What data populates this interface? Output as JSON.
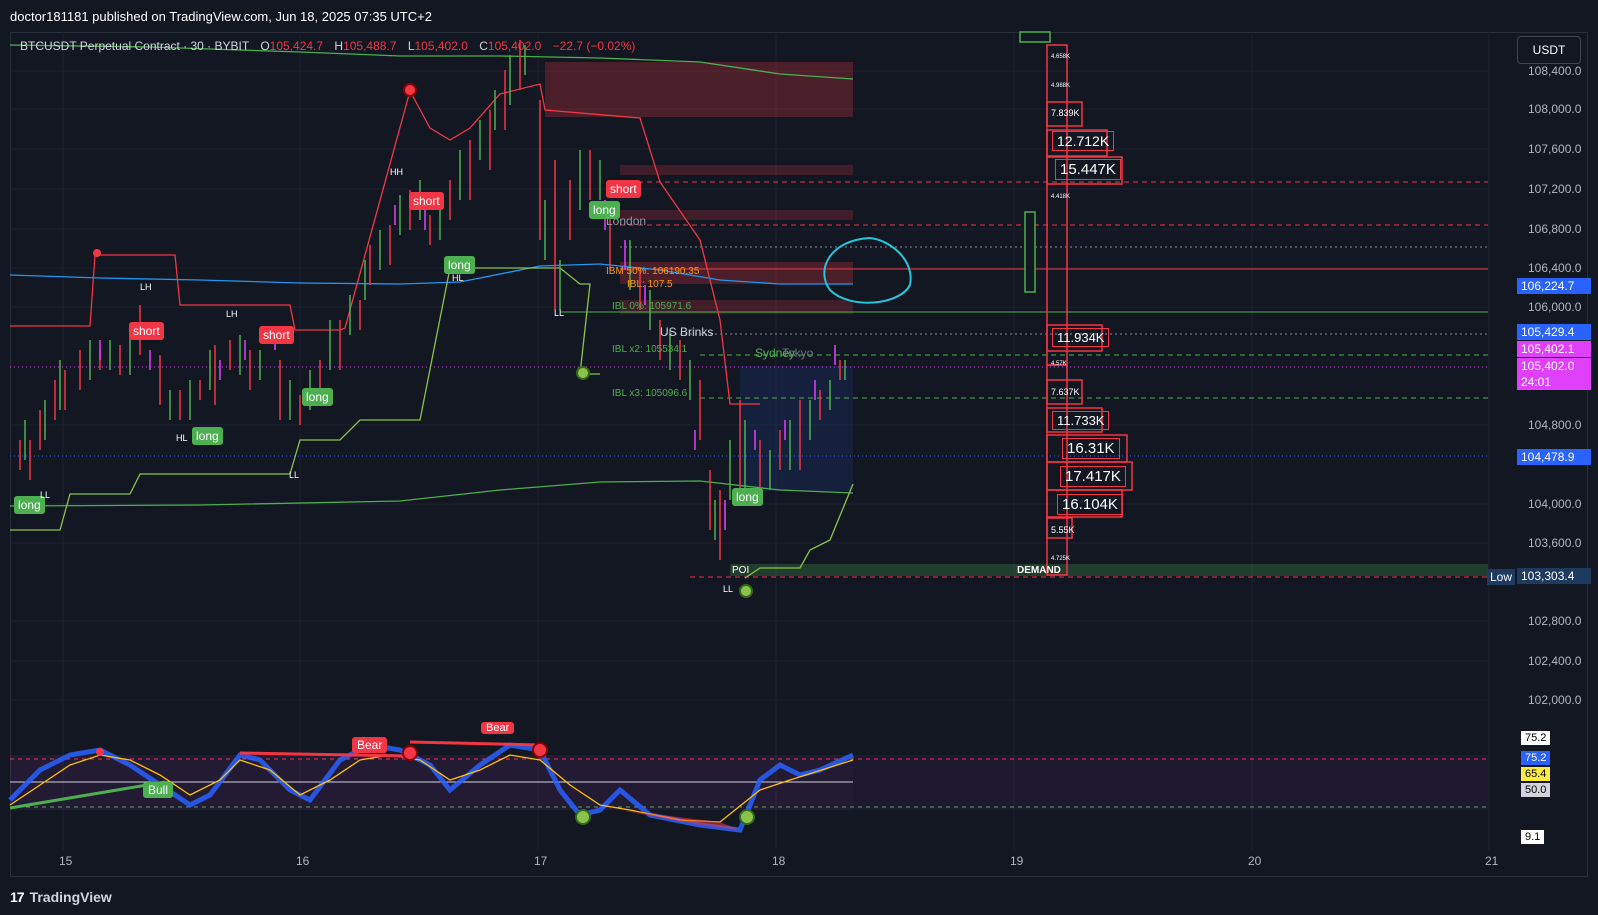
{
  "header": {
    "published": "doctor181181 published on TradingView.com, Jun 18, 2025 07:35 UTC+2"
  },
  "legend": {
    "symbol": "BTCUSDT Perpetual Contract · 30 · BYBIT",
    "open_label": "O",
    "open": "105,424.7",
    "high_label": "H",
    "high": "105,488.7",
    "low_label": "L",
    "low": "105,402.0",
    "close_label": "C",
    "close": "105,402.0",
    "change": "−22.7 (−0.02%)"
  },
  "currency": "USDT",
  "price_axis": [
    "108,400.0",
    "108,000.0",
    "107,600.0",
    "107,200.0",
    "106,800.0",
    "106,400.0",
    "106,000.0",
    "104,800.0",
    "104,000.0",
    "103,600.0",
    "102,800.0",
    "102,400.0",
    "102,000.0"
  ],
  "price_badges": [
    {
      "text": "106,224.7",
      "bg": "#2962ff"
    },
    {
      "text": "105,429.4",
      "bg": "#2962ff"
    },
    {
      "text": "105,402.1",
      "bg": "#e040fb"
    },
    {
      "text": "105,402.0",
      "bg": "#e040fb"
    },
    {
      "text": "24:01",
      "bg": "#e040fb"
    },
    {
      "text": "104,478.9",
      "bg": "#2962ff"
    },
    {
      "text": "103,303.4",
      "bg": "#1e3a5f"
    }
  ],
  "low_tag": "Low",
  "date_axis": [
    "15",
    "16",
    "17",
    "18",
    "19",
    "20",
    "21"
  ],
  "signals": {
    "long": "long",
    "short": "short"
  },
  "swing_labels": [
    "HH",
    "LH",
    "LH",
    "HL",
    "HL",
    "LL",
    "LL",
    "LL",
    "LL"
  ],
  "levels": {
    "ibm50": "IBM 50%: 106190.35",
    "ibl0": "IBL 0%: 105971.6",
    "ibl_x2": "IBL x2: 105534.1",
    "ibl_x3": "IBL x3: 105096.6",
    "ibh": "IBL: 107.5",
    "london": "London",
    "us_brinks": "US Brinks",
    "sydney": "Sydney",
    "tokyo": "Tokyo",
    "poi": "POI",
    "demand": "DEMAND"
  },
  "volume_profile": {
    "big": [
      "12.712K",
      "15.447K",
      "11.934K",
      "11.733K",
      "16.31K",
      "17.417K",
      "16.104K"
    ],
    "small": [
      "7.839K",
      "7.637K",
      "5.55K",
      "4.658K",
      "4.988K",
      "4.418K",
      "4.57K",
      "4.725K"
    ]
  },
  "oscillator": {
    "bear": "Bear",
    "bull": "Bull",
    "axis": [
      {
        "text": "75.2",
        "bg": "#ffffff",
        "fg": "#000000"
      },
      {
        "text": "75.2",
        "bg": "#2962ff",
        "fg": "#ffffff"
      },
      {
        "text": "65.4",
        "bg": "#ffeb3b",
        "fg": "#000000"
      },
      {
        "text": "50.0",
        "bg": "#d1d4dc",
        "fg": "#000000"
      },
      {
        "text": "9.1",
        "bg": "#ffffff",
        "fg": "#000000"
      }
    ]
  },
  "footer": {
    "logo_mark": "17",
    "logo_text": "TradingView"
  },
  "colors": {
    "background": "#131722",
    "bull": "#4caf50",
    "bear": "#f23645",
    "accent": "#2962ff"
  }
}
